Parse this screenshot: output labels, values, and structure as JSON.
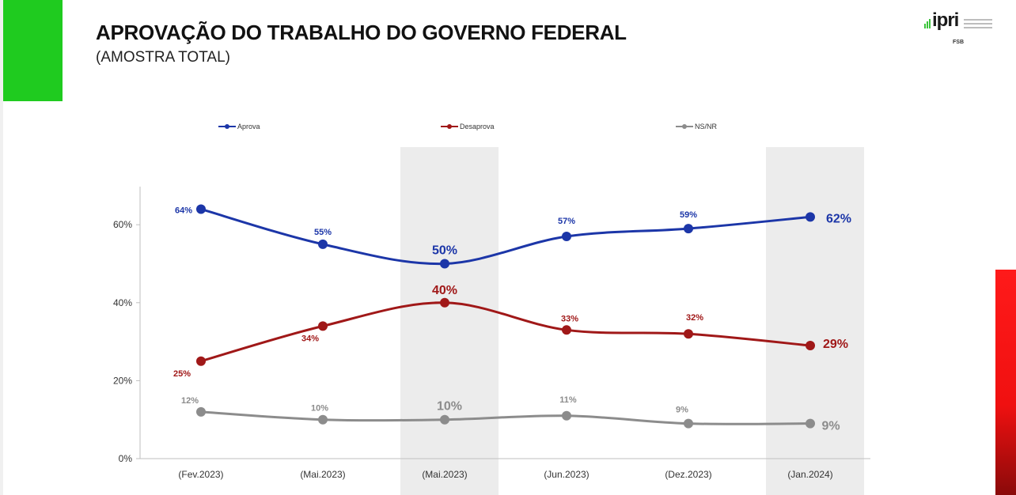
{
  "header": {
    "title": "APROVAÇÃO DO TRABALHO DO GOVERNO FEDERAL",
    "subtitle": "(AMOSTRA TOTAL)"
  },
  "logo": {
    "word": "ipri",
    "sub": "FSB"
  },
  "colors": {
    "aprova": "#1c36a8",
    "desaprova": "#a01818",
    "nsnr": "#8c8c8c",
    "highlight": "#ececec",
    "green": "#1fcb1f",
    "red": "#ff1a1a"
  },
  "chart_data": {
    "type": "line",
    "categories": [
      "(Fev.2023)",
      "(Mai.2023)",
      "(Mai.2023)",
      "(Jun.2023)",
      "(Dez.2023)",
      "(Jan.2024)"
    ],
    "highlighted_categories": [
      2,
      5
    ],
    "ylim": [
      0,
      70
    ],
    "yticks": [
      0,
      20,
      40,
      60
    ],
    "ytick_labels": [
      "0%",
      "20%",
      "40%",
      "60%"
    ],
    "legend_position": "top",
    "series": [
      {
        "name": "Aprova",
        "color": "#1c36a8",
        "values": [
          64,
          55,
          50,
          57,
          59,
          62
        ],
        "labels": [
          "64%",
          "55%",
          "50%",
          "57%",
          "59%",
          "62%"
        ]
      },
      {
        "name": "Desaprova",
        "color": "#a01818",
        "values": [
          25,
          34,
          40,
          33,
          32,
          29
        ],
        "labels": [
          "25%",
          "34%",
          "40%",
          "33%",
          "32%",
          "29%"
        ]
      },
      {
        "name": "NS/NR",
        "color": "#8c8c8c",
        "values": [
          12,
          10,
          10,
          11,
          9,
          9
        ],
        "labels": [
          "12%",
          "10%",
          "10%",
          "11%",
          "9%",
          "9%"
        ]
      }
    ]
  }
}
